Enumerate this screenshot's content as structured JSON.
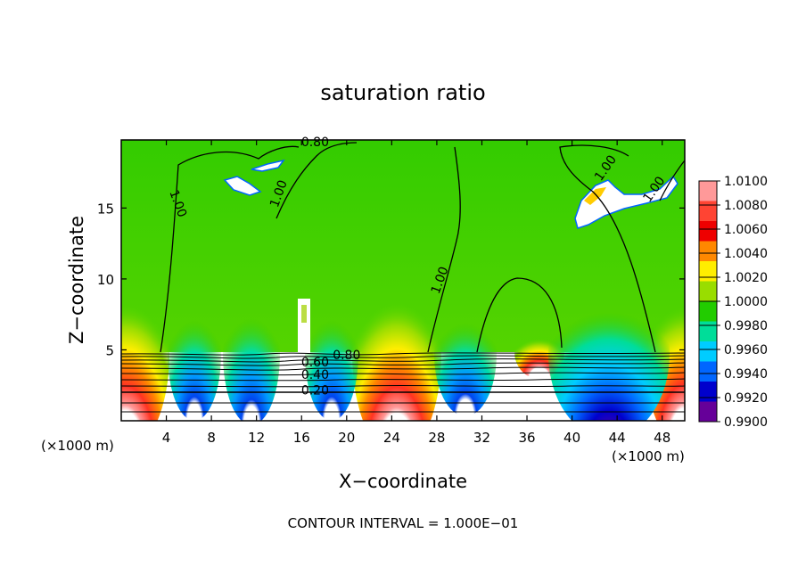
{
  "chart_data": {
    "type": "heatmap",
    "title": "saturation ratio",
    "xlabel": "X−coordinate",
    "ylabel": "Z−coordinate",
    "x_unit_left": "(×1000 m)",
    "x_unit_right": "(×1000 m)",
    "xlim": [
      0,
      50
    ],
    "ylim": [
      0,
      19.8
    ],
    "xticks": [
      4,
      8,
      12,
      16,
      20,
      24,
      28,
      32,
      36,
      40,
      44,
      48
    ],
    "yticks": [
      5,
      10,
      15
    ],
    "footer": "CONTOUR INTERVAL = 1.000E−01",
    "colorbar": {
      "levels": [
        "1.0100",
        "1.0080",
        "1.0060",
        "1.0040",
        "1.0020",
        "1.0000",
        "0.9980",
        "0.9960",
        "0.9940",
        "0.9920",
        "0.9900"
      ],
      "colors": [
        "#ff9999",
        "#ff4433",
        "#ee0000",
        "#ff8800",
        "#ffee00",
        "#99dd00",
        "#22cc00",
        "#00dd99",
        "#00ccff",
        "#0066ff",
        "#0000cc",
        "#660099"
      ]
    },
    "contour_labels": [
      {
        "text": "0.80",
        "x": 17.2,
        "y": 19.6
      },
      {
        "text": "1.00",
        "x": 5.0,
        "y": 15.3,
        "rotate": 70
      },
      {
        "text": "1.00",
        "x": 14.0,
        "y": 16.0,
        "rotate": -70
      },
      {
        "text": "1.00",
        "x": 28.3,
        "y": 9.9,
        "rotate": -70
      },
      {
        "text": "1.00",
        "x": 43.0,
        "y": 17.8,
        "rotate": -55
      },
      {
        "text": "1.00",
        "x": 47.3,
        "y": 16.3,
        "rotate": -55
      },
      {
        "text": "0.80",
        "x": 20.0,
        "y": 4.6
      },
      {
        "text": "0.60",
        "x": 17.2,
        "y": 4.1
      },
      {
        "text": "0.40",
        "x": 17.2,
        "y": 3.2
      },
      {
        "text": "0.20",
        "x": 17.2,
        "y": 2.1
      }
    ]
  }
}
